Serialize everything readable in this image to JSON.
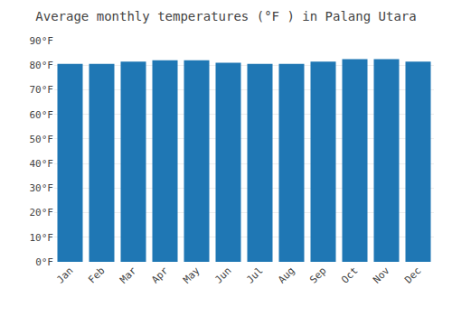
{
  "chart_data": {
    "type": "bar",
    "title": "Average monthly temperatures (°F ) in Palang Utara",
    "categories": [
      "Jan",
      "Feb",
      "Mar",
      "Apr",
      "May",
      "Jun",
      "Jul",
      "Aug",
      "Sep",
      "Oct",
      "Nov",
      "Dec"
    ],
    "values": [
      80.5,
      80.5,
      81.5,
      82.0,
      82.0,
      81.0,
      80.5,
      80.5,
      81.5,
      82.5,
      82.5,
      81.5
    ],
    "ylim": [
      0,
      90
    ],
    "yticks": [
      {
        "value": 0,
        "label": "0°F"
      },
      {
        "value": 10,
        "label": "10°F"
      },
      {
        "value": 20,
        "label": "20°F"
      },
      {
        "value": 30,
        "label": "30°F"
      },
      {
        "value": 40,
        "label": "40°F"
      },
      {
        "value": 50,
        "label": "50°F"
      },
      {
        "value": 60,
        "label": "60°F"
      },
      {
        "value": 70,
        "label": "70°F"
      },
      {
        "value": 80,
        "label": "80°F"
      },
      {
        "value": 90,
        "label": "90°F"
      }
    ],
    "grid": true
  }
}
